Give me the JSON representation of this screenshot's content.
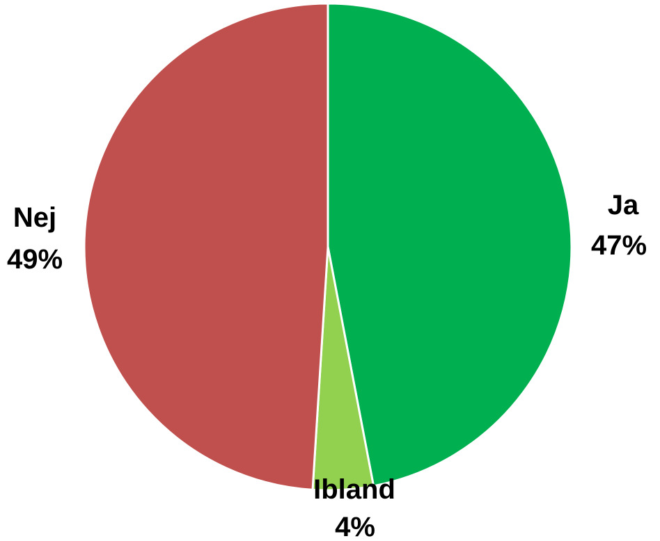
{
  "chart_data": {
    "type": "pie",
    "title": "",
    "legend": "none",
    "slices": [
      {
        "label": "Ja",
        "value": 47,
        "display": "47%",
        "color": "#00B050"
      },
      {
        "label": "Ibland",
        "value": 4,
        "display": "4%",
        "color": "#92D050"
      },
      {
        "label": "Nej",
        "value": 49,
        "display": "49%",
        "color": "#C0504D"
      }
    ]
  }
}
